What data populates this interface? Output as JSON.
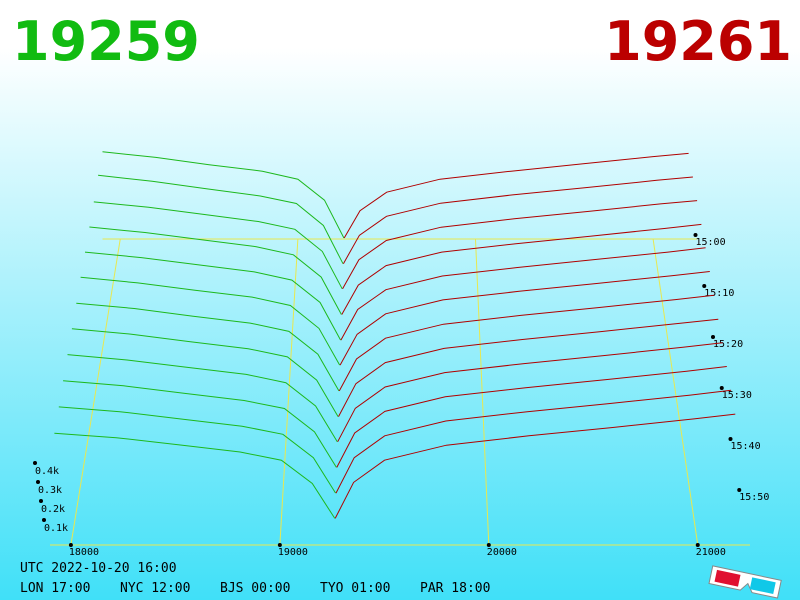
{
  "header": {
    "bid": "19259",
    "ask": "19261"
  },
  "chart_data": {
    "type": "depth3d",
    "xlim": [
      17900,
      21250
    ],
    "xticks": [
      18000,
      19000,
      20000,
      21000
    ],
    "zticks": [
      {
        "value": 100,
        "label": "0.1k"
      },
      {
        "value": 200,
        "label": "0.2k"
      },
      {
        "value": 300,
        "label": "0.3k"
      },
      {
        "value": 400,
        "label": "0.4k"
      }
    ],
    "time_ticks": [
      "15:00",
      "15:10",
      "15:20",
      "15:30",
      "15:40",
      "15:50"
    ],
    "bid_color": "#1db81d",
    "ask_color": "#b00000",
    "grid_color": "#e8e850",
    "bid_prices": [
      17900,
      18200,
      18500,
      18800,
      19000,
      19150,
      19259
    ],
    "ask_prices": [
      19261,
      19350,
      19500,
      19800,
      20200,
      20600,
      21000,
      21200
    ],
    "snapshots": [
      {
        "bids": [
          540,
          505,
          460,
          420,
          370,
          240,
          6
        ],
        "asks": [
          6,
          175,
          290,
          370,
          420,
          465,
          510,
          530
        ]
      },
      {
        "bids": [
          545,
          508,
          462,
          418,
          372,
          238,
          5
        ],
        "asks": [
          5,
          178,
          294,
          374,
          425,
          468,
          514,
          534
        ]
      },
      {
        "bids": [
          530,
          498,
          455,
          412,
          365,
          232,
          7
        ],
        "asks": [
          7,
          182,
          298,
          378,
          428,
          472,
          518,
          538
        ]
      },
      {
        "bids": [
          525,
          492,
          450,
          408,
          360,
          228,
          6
        ],
        "asks": [
          6,
          180,
          296,
          376,
          426,
          470,
          516,
          540
        ]
      },
      {
        "bids": [
          520,
          488,
          446,
          404,
          356,
          225,
          5
        ],
        "asks": [
          5,
          184,
          300,
          380,
          430,
          475,
          520,
          545
        ]
      },
      {
        "bids": [
          515,
          482,
          440,
          400,
          352,
          220,
          8
        ],
        "asks": [
          8,
          186,
          304,
          384,
          434,
          478,
          524,
          548
        ]
      },
      {
        "bids": [
          505,
          475,
          432,
          392,
          345,
          215,
          6
        ],
        "asks": [
          6,
          188,
          306,
          386,
          436,
          480,
          526,
          550
        ]
      },
      {
        "bids": [
          498,
          468,
          426,
          386,
          340,
          210,
          5
        ],
        "asks": [
          5,
          190,
          308,
          388,
          438,
          482,
          528,
          552
        ]
      },
      {
        "bids": [
          490,
          460,
          420,
          380,
          334,
          205,
          7
        ],
        "asks": [
          7,
          192,
          310,
          390,
          440,
          484,
          530,
          555
        ]
      },
      {
        "bids": [
          480,
          452,
          412,
          372,
          328,
          200,
          6
        ],
        "asks": [
          6,
          194,
          312,
          392,
          442,
          486,
          532,
          558
        ]
      },
      {
        "bids": [
          470,
          444,
          405,
          366,
          322,
          196,
          5
        ],
        "asks": [
          5,
          196,
          314,
          394,
          444,
          488,
          534,
          560
        ]
      },
      {
        "bids": [
          460,
          436,
          398,
          360,
          316,
          192,
          6
        ],
        "asks": [
          6,
          198,
          316,
          396,
          446,
          490,
          536,
          562
        ]
      }
    ]
  },
  "footer": {
    "utc": "UTC 2022-10-20 16:00",
    "cities": [
      "LON 17:00",
      "NYC 12:00",
      "BJS 00:00",
      "TYO 01:00",
      "PAR 18:00"
    ]
  }
}
